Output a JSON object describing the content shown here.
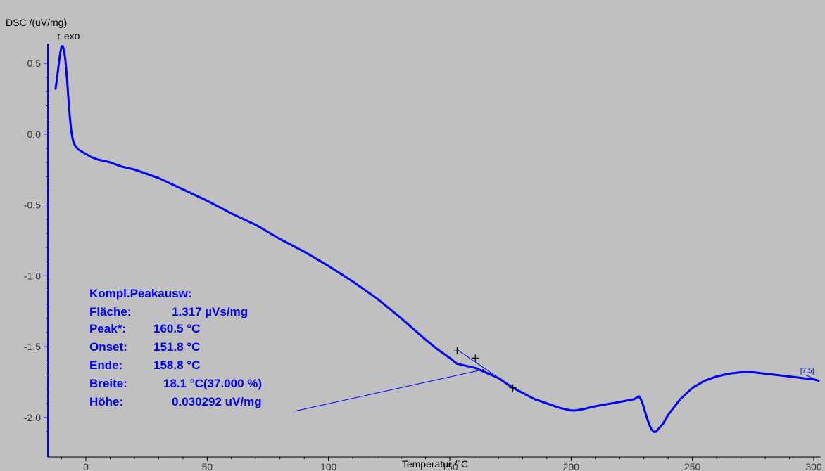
{
  "chart_data": {
    "type": "line",
    "ylabel": "DSC /(uV/mg)",
    "exo_label": "↑ exo",
    "xlabel": "Temperatur /°C",
    "xlim": [
      -15,
      302
    ],
    "ylim": [
      -2.15,
      0.65
    ],
    "x_ticks": [
      0,
      50,
      100,
      150,
      200,
      250,
      300
    ],
    "y_ticks": [
      0.5,
      0.0,
      -0.5,
      -1.0,
      -1.5,
      -2.0
    ],
    "y_tick_labels": [
      "0.5",
      "0.0",
      "-0.5",
      "-1.0",
      "-1.5",
      "-2.0"
    ],
    "grid": false,
    "series": [
      {
        "color": "#0000ff",
        "x": [
          -12.5,
          -12,
          -11.5,
          -11,
          -10.5,
          -10,
          -9.5,
          -9,
          -8.5,
          -8,
          -7.5,
          -7,
          -6.5,
          -6,
          -5.5,
          -5,
          -4.5,
          -4,
          -3.5,
          -3,
          -2,
          0,
          2,
          5,
          8,
          10,
          15,
          20,
          25,
          30,
          40,
          50,
          60,
          70,
          80,
          90,
          100,
          110,
          120,
          130,
          140,
          145,
          150,
          153,
          160.5,
          170,
          176,
          185,
          195,
          200,
          202,
          205,
          210,
          220,
          226,
          228,
          229,
          230,
          231,
          232,
          233,
          234,
          235,
          236,
          238,
          240,
          245,
          250,
          255,
          260,
          265,
          270,
          275,
          280,
          285,
          290,
          295,
          300,
          302
        ],
        "y": [
          0.32,
          0.38,
          0.45,
          0.52,
          0.58,
          0.62,
          0.62,
          0.59,
          0.53,
          0.44,
          0.32,
          0.2,
          0.1,
          0.02,
          -0.03,
          -0.06,
          -0.08,
          -0.09,
          -0.1,
          -0.11,
          -0.12,
          -0.14,
          -0.16,
          -0.18,
          -0.19,
          -0.2,
          -0.23,
          -0.25,
          -0.28,
          -0.31,
          -0.39,
          -0.47,
          -0.56,
          -0.64,
          -0.74,
          -0.83,
          -0.93,
          -1.04,
          -1.16,
          -1.3,
          -1.45,
          -1.52,
          -1.58,
          -1.62,
          -1.65,
          -1.72,
          -1.79,
          -1.87,
          -1.93,
          -1.95,
          -1.95,
          -1.94,
          -1.92,
          -1.89,
          -1.87,
          -1.85,
          -1.88,
          -1.93,
          -1.99,
          -2.04,
          -2.08,
          -2.1,
          -2.1,
          -2.08,
          -2.04,
          -1.98,
          -1.87,
          -1.79,
          -1.74,
          -1.71,
          -1.69,
          -1.68,
          -1.68,
          -1.69,
          -1.7,
          -1.71,
          -1.72,
          -1.73,
          -1.74
        ]
      }
    ],
    "baseline": {
      "x": [
        153,
        176
      ],
      "y": [
        -1.52,
        -1.79
      ]
    },
    "markers": [
      {
        "x": 153,
        "y": -1.53
      },
      {
        "x": 160.5,
        "y": -1.58
      },
      {
        "x": 176,
        "y": -1.79
      }
    ],
    "annotation": {
      "title": "Kompl.Peakausw:",
      "rows": [
        {
          "label": "Fläche:",
          "value": "1.317 µVs/mg"
        },
        {
          "label": "Peak*:",
          "value": "160.5 °C"
        },
        {
          "label": "Onset:",
          "value": "151.8 °C"
        },
        {
          "label": "Ende:",
          "value": "158.8 °C"
        },
        {
          "label": "Breite:",
          "value": "18.1 °C(37.000 %)"
        },
        {
          "label": "Höhe:",
          "value": "0.030292 uV/mg"
        }
      ]
    },
    "end_marker_label": "[7.5]"
  }
}
